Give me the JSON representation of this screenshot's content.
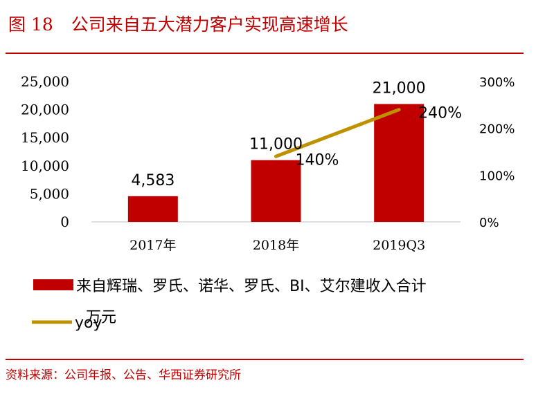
{
  "header": {
    "figure_number": "图 18",
    "title": "公司来自五大潜力客户实现高速增长"
  },
  "source": "资料来源：公司年报、公告、华西证券研究所",
  "colors": {
    "bar": "#c00000",
    "line": "#bf9000",
    "accent": "#c00000"
  },
  "chart_data": {
    "type": "bar",
    "categories": [
      "2017年",
      "2018年",
      "2019Q3"
    ],
    "series": [
      {
        "name": "来自辉瑞、罗氏、诺华、罗氏、BI、艾尔建收入合计",
        "type": "bar",
        "axis": "left",
        "values": [
          4583,
          11000,
          21000
        ],
        "labels": [
          "4,583",
          "11,000",
          "21,000"
        ]
      },
      {
        "name": "yoy",
        "type": "line",
        "axis": "right",
        "values": [
          null,
          140,
          240
        ],
        "labels": [
          "",
          "140%",
          "240%"
        ]
      }
    ],
    "y_unit": "万元",
    "ylim": [
      0,
      25000
    ],
    "yticks": [
      "0",
      "5,000",
      "10,000",
      "15,000",
      "20,000",
      "25,000"
    ],
    "y2lim": [
      0,
      300
    ],
    "y2ticks": [
      "0%",
      "100%",
      "200%",
      "300%"
    ],
    "legend_position": "bottom",
    "grid": false
  }
}
